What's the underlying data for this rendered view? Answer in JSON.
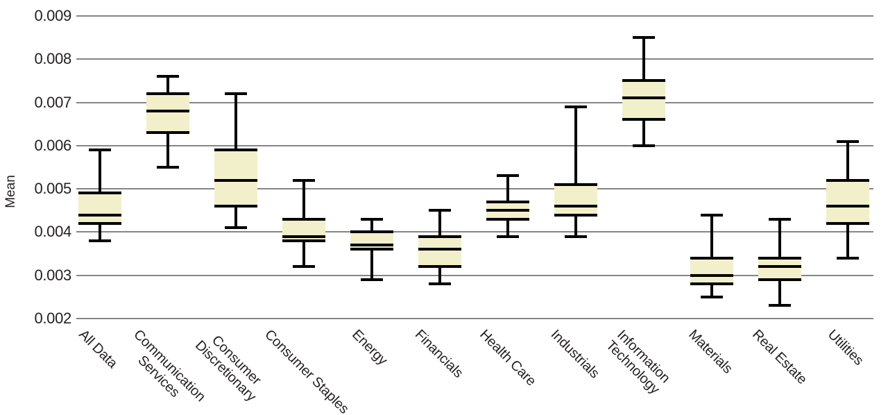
{
  "colors": {
    "background": "#ffffff",
    "box_fill": "#f2efcb",
    "box_line": "#000000",
    "grid_line": "#858585",
    "text": "#231f20"
  },
  "chart_data": {
    "type": "boxplot",
    "title": "",
    "xlabel": "",
    "ylabel": "Mean",
    "ylim": [
      0.002,
      0.009
    ],
    "yticks": [
      0.009,
      0.008,
      0.007,
      0.006,
      0.005,
      0.004,
      0.003,
      0.002
    ],
    "grid": "horizontal gridline at every y tick, no axis spines",
    "legend": "none",
    "categories": [
      "All Data",
      "Communication\nServices",
      "Consumer\nDiscretionary",
      "Consumer Staples",
      "Energy",
      "Financials",
      "Health Care",
      "Industrials",
      "Information\nTechnology",
      "Materials",
      "Real Estate",
      "Utilities"
    ],
    "series": [
      {
        "name": "All Data",
        "whisker_low": 0.0038,
        "q1": 0.0042,
        "median": 0.0044,
        "q3": 0.0049,
        "whisker_high": 0.0059
      },
      {
        "name": "Communication Services",
        "whisker_low": 0.0055,
        "q1": 0.0063,
        "median": 0.0068,
        "q3": 0.0072,
        "whisker_high": 0.0076
      },
      {
        "name": "Consumer Discretionary",
        "whisker_low": 0.0041,
        "q1": 0.0046,
        "median": 0.0052,
        "q3": 0.0059,
        "whisker_high": 0.0072
      },
      {
        "name": "Consumer Staples",
        "whisker_low": 0.0032,
        "q1": 0.0038,
        "median": 0.0039,
        "q3": 0.0043,
        "whisker_high": 0.0052
      },
      {
        "name": "Energy",
        "whisker_low": 0.0029,
        "q1": 0.0036,
        "median": 0.0037,
        "q3": 0.004,
        "whisker_high": 0.0043
      },
      {
        "name": "Financials",
        "whisker_low": 0.0028,
        "q1": 0.0032,
        "median": 0.0036,
        "q3": 0.0039,
        "whisker_high": 0.0045
      },
      {
        "name": "Health Care",
        "whisker_low": 0.0039,
        "q1": 0.0043,
        "median": 0.0045,
        "q3": 0.0047,
        "whisker_high": 0.0053
      },
      {
        "name": "Industrials",
        "whisker_low": 0.0039,
        "q1": 0.0044,
        "median": 0.0046,
        "q3": 0.0051,
        "whisker_high": 0.0069
      },
      {
        "name": "Information Technology",
        "whisker_low": 0.006,
        "q1": 0.0066,
        "median": 0.0071,
        "q3": 0.0075,
        "whisker_high": 0.0085
      },
      {
        "name": "Materials",
        "whisker_low": 0.0025,
        "q1": 0.0028,
        "median": 0.003,
        "q3": 0.0034,
        "whisker_high": 0.0044
      },
      {
        "name": "Real Estate",
        "whisker_low": 0.0023,
        "q1": 0.0029,
        "median": 0.0032,
        "q3": 0.0034,
        "whisker_high": 0.0043
      },
      {
        "name": "Utilities",
        "whisker_low": 0.0034,
        "q1": 0.0042,
        "median": 0.0046,
        "q3": 0.0052,
        "whisker_high": 0.0061
      }
    ]
  }
}
